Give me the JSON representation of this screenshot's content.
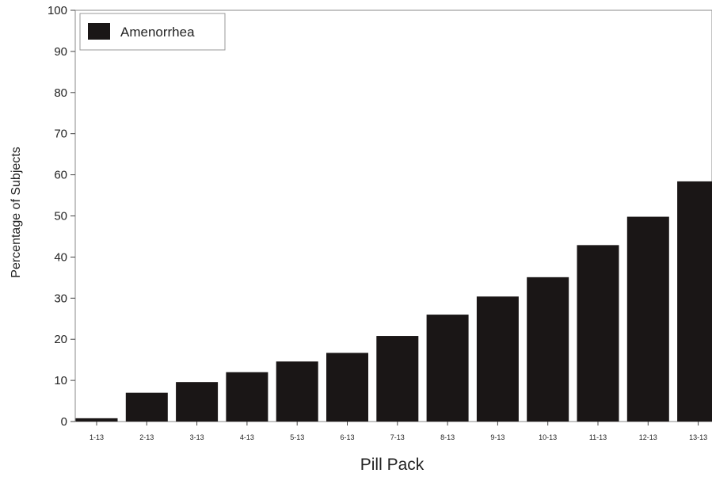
{
  "chart_data": {
    "type": "bar",
    "title": "",
    "xlabel": "Pill Pack",
    "ylabel": "Percentage of Subjects",
    "ylim": [
      0,
      100
    ],
    "yticks": [
      0,
      10,
      20,
      30,
      40,
      50,
      60,
      70,
      80,
      90,
      100
    ],
    "grid": false,
    "legend_position": "top-left",
    "categories": [
      "1-13",
      "2-13",
      "3-13",
      "4-13",
      "5-13",
      "6-13",
      "7-13",
      "8-13",
      "9-13",
      "10-13",
      "11-13",
      "12-13",
      "13-13"
    ],
    "series": [
      {
        "name": "Amenorrhea",
        "color": "#1a1616",
        "values": [
          0.8,
          7.0,
          9.6,
          12.0,
          14.6,
          16.7,
          20.8,
          26.0,
          30.4,
          35.1,
          42.9,
          49.8,
          58.4
        ]
      }
    ]
  }
}
